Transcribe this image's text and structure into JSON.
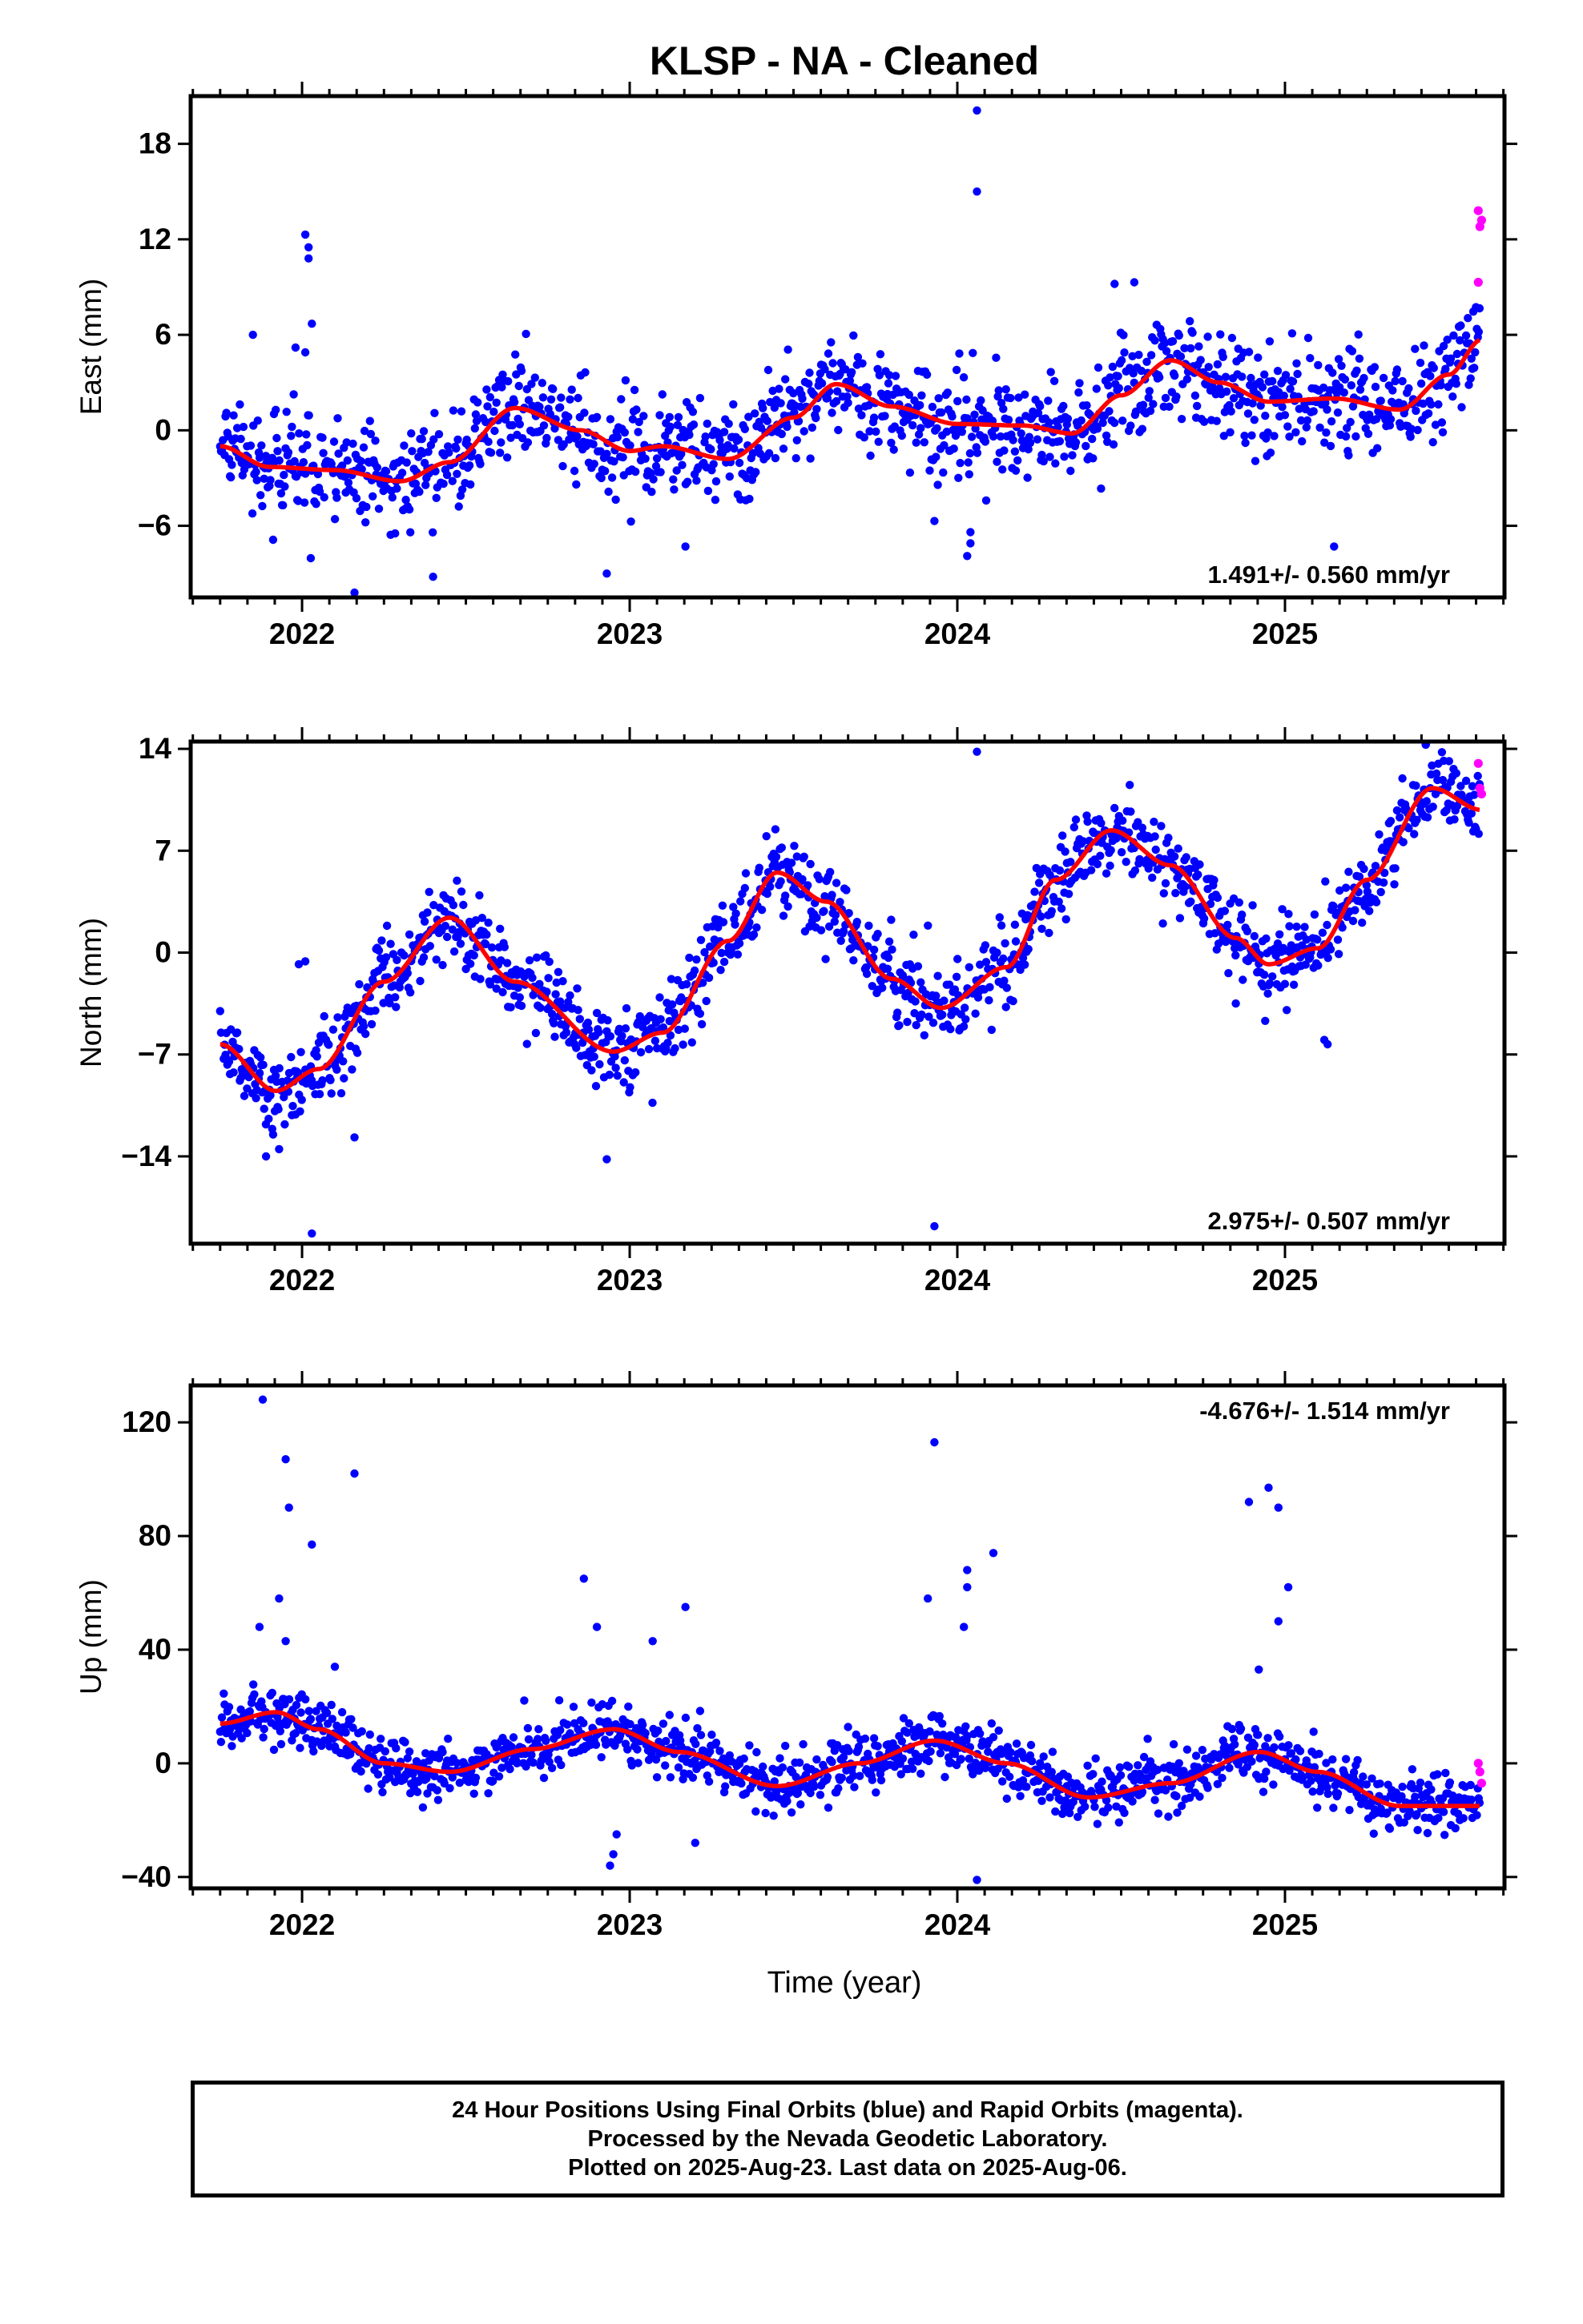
{
  "title": "KLSP  - NA - Cleaned",
  "xlabel": "Time (year)",
  "footer": {
    "line1": "24 Hour Positions Using Final Orbits (blue) and Rapid Orbits (magenta).",
    "line2": "Processed by the Nevada Geodetic Laboratory.",
    "line3": "Plotted on 2025-Aug-23. Last data on 2025-Aug-06."
  },
  "colors": {
    "final": "#0000ff",
    "rapid": "#ff00ff",
    "model": "#ff0000",
    "axis": "#000000"
  },
  "chart_data": [
    {
      "type": "scatter",
      "component": "East",
      "ylabel": "East (mm)",
      "xlim": [
        2021.66,
        2025.67
      ],
      "ylim": [
        -10.5,
        21
      ],
      "yticks": [
        -6,
        0,
        6,
        12,
        18
      ],
      "ytick_labels": [
        "−6",
        "0",
        "6",
        "12",
        "18"
      ],
      "xticks": [
        2022,
        2023,
        2024,
        2025
      ],
      "xtick_labels": [
        "2022",
        "2023",
        "2024",
        "2025"
      ],
      "rate_label": "1.491+/- 0.560 mm/yr",
      "rate_position": "bottom-right",
      "model": {
        "rate": 1.491,
        "offset": -0.7,
        "t_ref": 2023.7,
        "control_points": [
          [
            2021.75,
            -1.0
          ],
          [
            2021.9,
            -2.3
          ],
          [
            2022.1,
            -2.5
          ],
          [
            2022.3,
            -3.2
          ],
          [
            2022.45,
            -2.0
          ],
          [
            2022.65,
            1.4
          ],
          [
            2022.85,
            0.0
          ],
          [
            2023.0,
            -1.3
          ],
          [
            2023.1,
            -1.0
          ],
          [
            2023.3,
            -1.8
          ],
          [
            2023.5,
            0.8
          ],
          [
            2023.63,
            2.9
          ],
          [
            2023.8,
            1.5
          ],
          [
            2024.0,
            0.4
          ],
          [
            2024.2,
            0.3
          ],
          [
            2024.35,
            -0.2
          ],
          [
            2024.5,
            2.2
          ],
          [
            2024.65,
            4.4
          ],
          [
            2024.8,
            3.0
          ],
          [
            2024.95,
            1.8
          ],
          [
            2025.15,
            2.0
          ],
          [
            2025.35,
            1.3
          ],
          [
            2025.5,
            3.5
          ],
          [
            2025.6,
            5.7
          ]
        ],
        "seasonal": [
          {
            "period": 1.0,
            "cos": -0.8,
            "sin": -1.6
          },
          {
            "period": 0.5,
            "cos": 0.7,
            "sin": 0.4
          }
        ]
      },
      "noise_sd": 1.6,
      "data_start": 2021.75,
      "data_end": 2025.595,
      "step_days": 1,
      "outliers": [
        [
          2022.01,
          12.3
        ],
        [
          2022.02,
          11.5
        ],
        [
          2022.02,
          10.8
        ],
        [
          2022.03,
          6.7
        ],
        [
          2021.85,
          6.0
        ],
        [
          2021.98,
          5.2
        ],
        [
          2022.01,
          4.9
        ],
        [
          2022.16,
          -10.2
        ],
        [
          2022.4,
          -9.2
        ],
        [
          2022.93,
          -9.0
        ],
        [
          2023.17,
          -7.3
        ],
        [
          2024.06,
          20.1
        ],
        [
          2024.06,
          15.0
        ],
        [
          2024.03,
          -7.9
        ],
        [
          2024.04,
          -7.1
        ],
        [
          2024.04,
          -6.4
        ],
        [
          2023.93,
          -5.7
        ],
        [
          2025.15,
          -7.3
        ],
        [
          2024.54,
          9.3
        ],
        [
          2024.48,
          9.2
        ]
      ],
      "rapid_points": [
        [
          2025.59,
          13.8
        ],
        [
          2025.6,
          13.2
        ],
        [
          2025.595,
          12.8
        ],
        [
          2025.59,
          9.3
        ]
      ]
    },
    {
      "type": "scatter",
      "component": "North",
      "ylabel": "North (mm)",
      "xlim": [
        2021.66,
        2025.67
      ],
      "ylim": [
        -20,
        14.5
      ],
      "yticks": [
        -14,
        -7,
        0,
        7,
        14
      ],
      "ytick_labels": [
        "−14",
        "−7",
        "0",
        "7",
        "14"
      ],
      "xticks": [
        2022,
        2023,
        2024,
        2025
      ],
      "xtick_labels": [
        "2022",
        "2023",
        "2024",
        "2025"
      ],
      "rate_label": "2.975+/- 0.507 mm/yr",
      "rate_position": "bottom-right",
      "model": {
        "rate": 2.975,
        "offset": 0.0,
        "t_ref": 2023.7,
        "control_points": [
          [
            2021.75,
            -6.3
          ],
          [
            2021.92,
            -9.5
          ],
          [
            2022.05,
            -8.0
          ],
          [
            2022.25,
            -2.0
          ],
          [
            2022.45,
            2.4
          ],
          [
            2022.65,
            -2.0
          ],
          [
            2022.95,
            -6.8
          ],
          [
            2023.1,
            -5.5
          ],
          [
            2023.3,
            0.8
          ],
          [
            2023.45,
            5.5
          ],
          [
            2023.6,
            3.5
          ],
          [
            2023.8,
            -1.8
          ],
          [
            2023.95,
            -3.8
          ],
          [
            2024.15,
            -1.0
          ],
          [
            2024.3,
            5.0
          ],
          [
            2024.47,
            8.4
          ],
          [
            2024.65,
            6.0
          ],
          [
            2024.85,
            1.0
          ],
          [
            2024.95,
            -0.8
          ],
          [
            2025.1,
            0.3
          ],
          [
            2025.25,
            5.0
          ],
          [
            2025.45,
            11.3
          ],
          [
            2025.6,
            9.8
          ]
        ],
        "seasonal": [
          {
            "period": 1.0,
            "cos": -2.5,
            "sin": 5.5
          }
        ]
      },
      "noise_sd": 1.4,
      "data_start": 2021.75,
      "data_end": 2025.595,
      "step_days": 1,
      "outliers": [
        [
          2022.03,
          -19.3
        ],
        [
          2023.93,
          -18.8
        ],
        [
          2024.06,
          13.8
        ],
        [
          2021.99,
          -0.8
        ],
        [
          2022.01,
          -0.6
        ],
        [
          2022.16,
          -12.7
        ],
        [
          2021.93,
          -13.5
        ],
        [
          2021.89,
          -14.0
        ],
        [
          2022.93,
          -14.2
        ],
        [
          2025.13,
          -6.3
        ],
        [
          2025.12,
          -6.0
        ],
        [
          2024.85,
          -3.5
        ],
        [
          2025.43,
          14.3
        ]
      ],
      "rapid_points": [
        [
          2025.59,
          13.0
        ],
        [
          2025.595,
          11.3
        ],
        [
          2025.6,
          10.9
        ]
      ]
    },
    {
      "type": "scatter",
      "component": "Up",
      "ylabel": "Up (mm)",
      "xlim": [
        2021.66,
        2025.67
      ],
      "ylim": [
        -44,
        133
      ],
      "yticks": [
        -40,
        0,
        40,
        80,
        120
      ],
      "ytick_labels": [
        "−40",
        "0",
        "40",
        "80",
        "120"
      ],
      "xticks": [
        2022,
        2023,
        2024,
        2025
      ],
      "xtick_labels": [
        "2022",
        "2023",
        "2024",
        "2025"
      ],
      "rate_label": "-4.676+/- 1.514 mm/yr",
      "rate_position": "top-right",
      "model": {
        "rate": -4.676,
        "offset": 0.0,
        "t_ref": 2023.7,
        "control_points": [
          [
            2021.75,
            14
          ],
          [
            2021.92,
            18
          ],
          [
            2022.05,
            12
          ],
          [
            2022.25,
            0
          ],
          [
            2022.45,
            -3
          ],
          [
            2022.7,
            5
          ],
          [
            2022.95,
            12
          ],
          [
            2023.15,
            4
          ],
          [
            2023.45,
            -8
          ],
          [
            2023.7,
            0
          ],
          [
            2023.93,
            8
          ],
          [
            2024.15,
            0
          ],
          [
            2024.4,
            -12
          ],
          [
            2024.65,
            -7
          ],
          [
            2024.92,
            4
          ],
          [
            2025.1,
            -3
          ],
          [
            2025.35,
            -15
          ],
          [
            2025.6,
            -15
          ]
        ],
        "seasonal": [
          {
            "period": 1.0,
            "cos": 6.0,
            "sin": -13.0
          }
        ]
      },
      "noise_sd": 5.0,
      "data_start": 2021.75,
      "data_end": 2025.595,
      "step_days": 1,
      "outliers": [
        [
          2021.88,
          128
        ],
        [
          2021.95,
          107
        ],
        [
          2021.96,
          90
        ],
        [
          2022.03,
          77
        ],
        [
          2022.16,
          102
        ],
        [
          2021.93,
          58
        ],
        [
          2021.87,
          48
        ],
        [
          2021.95,
          43
        ],
        [
          2022.1,
          34
        ],
        [
          2022.86,
          65
        ],
        [
          2022.9,
          48
        ],
        [
          2023.07,
          43
        ],
        [
          2023.17,
          55
        ],
        [
          2022.94,
          -36
        ],
        [
          2022.95,
          -32
        ],
        [
          2022.96,
          -25
        ],
        [
          2023.2,
          -28
        ],
        [
          2023.93,
          113
        ],
        [
          2024.03,
          68
        ],
        [
          2024.03,
          62
        ],
        [
          2024.11,
          74
        ],
        [
          2024.06,
          -41
        ],
        [
          2023.91,
          58
        ],
        [
          2024.02,
          48
        ],
        [
          2024.89,
          92
        ],
        [
          2024.95,
          97
        ],
        [
          2024.98,
          90
        ],
        [
          2025.01,
          62
        ],
        [
          2024.98,
          50
        ],
        [
          2024.92,
          33
        ]
      ],
      "rapid_points": [
        [
          2025.59,
          0
        ],
        [
          2025.595,
          -3
        ],
        [
          2025.6,
          -7
        ]
      ]
    }
  ]
}
